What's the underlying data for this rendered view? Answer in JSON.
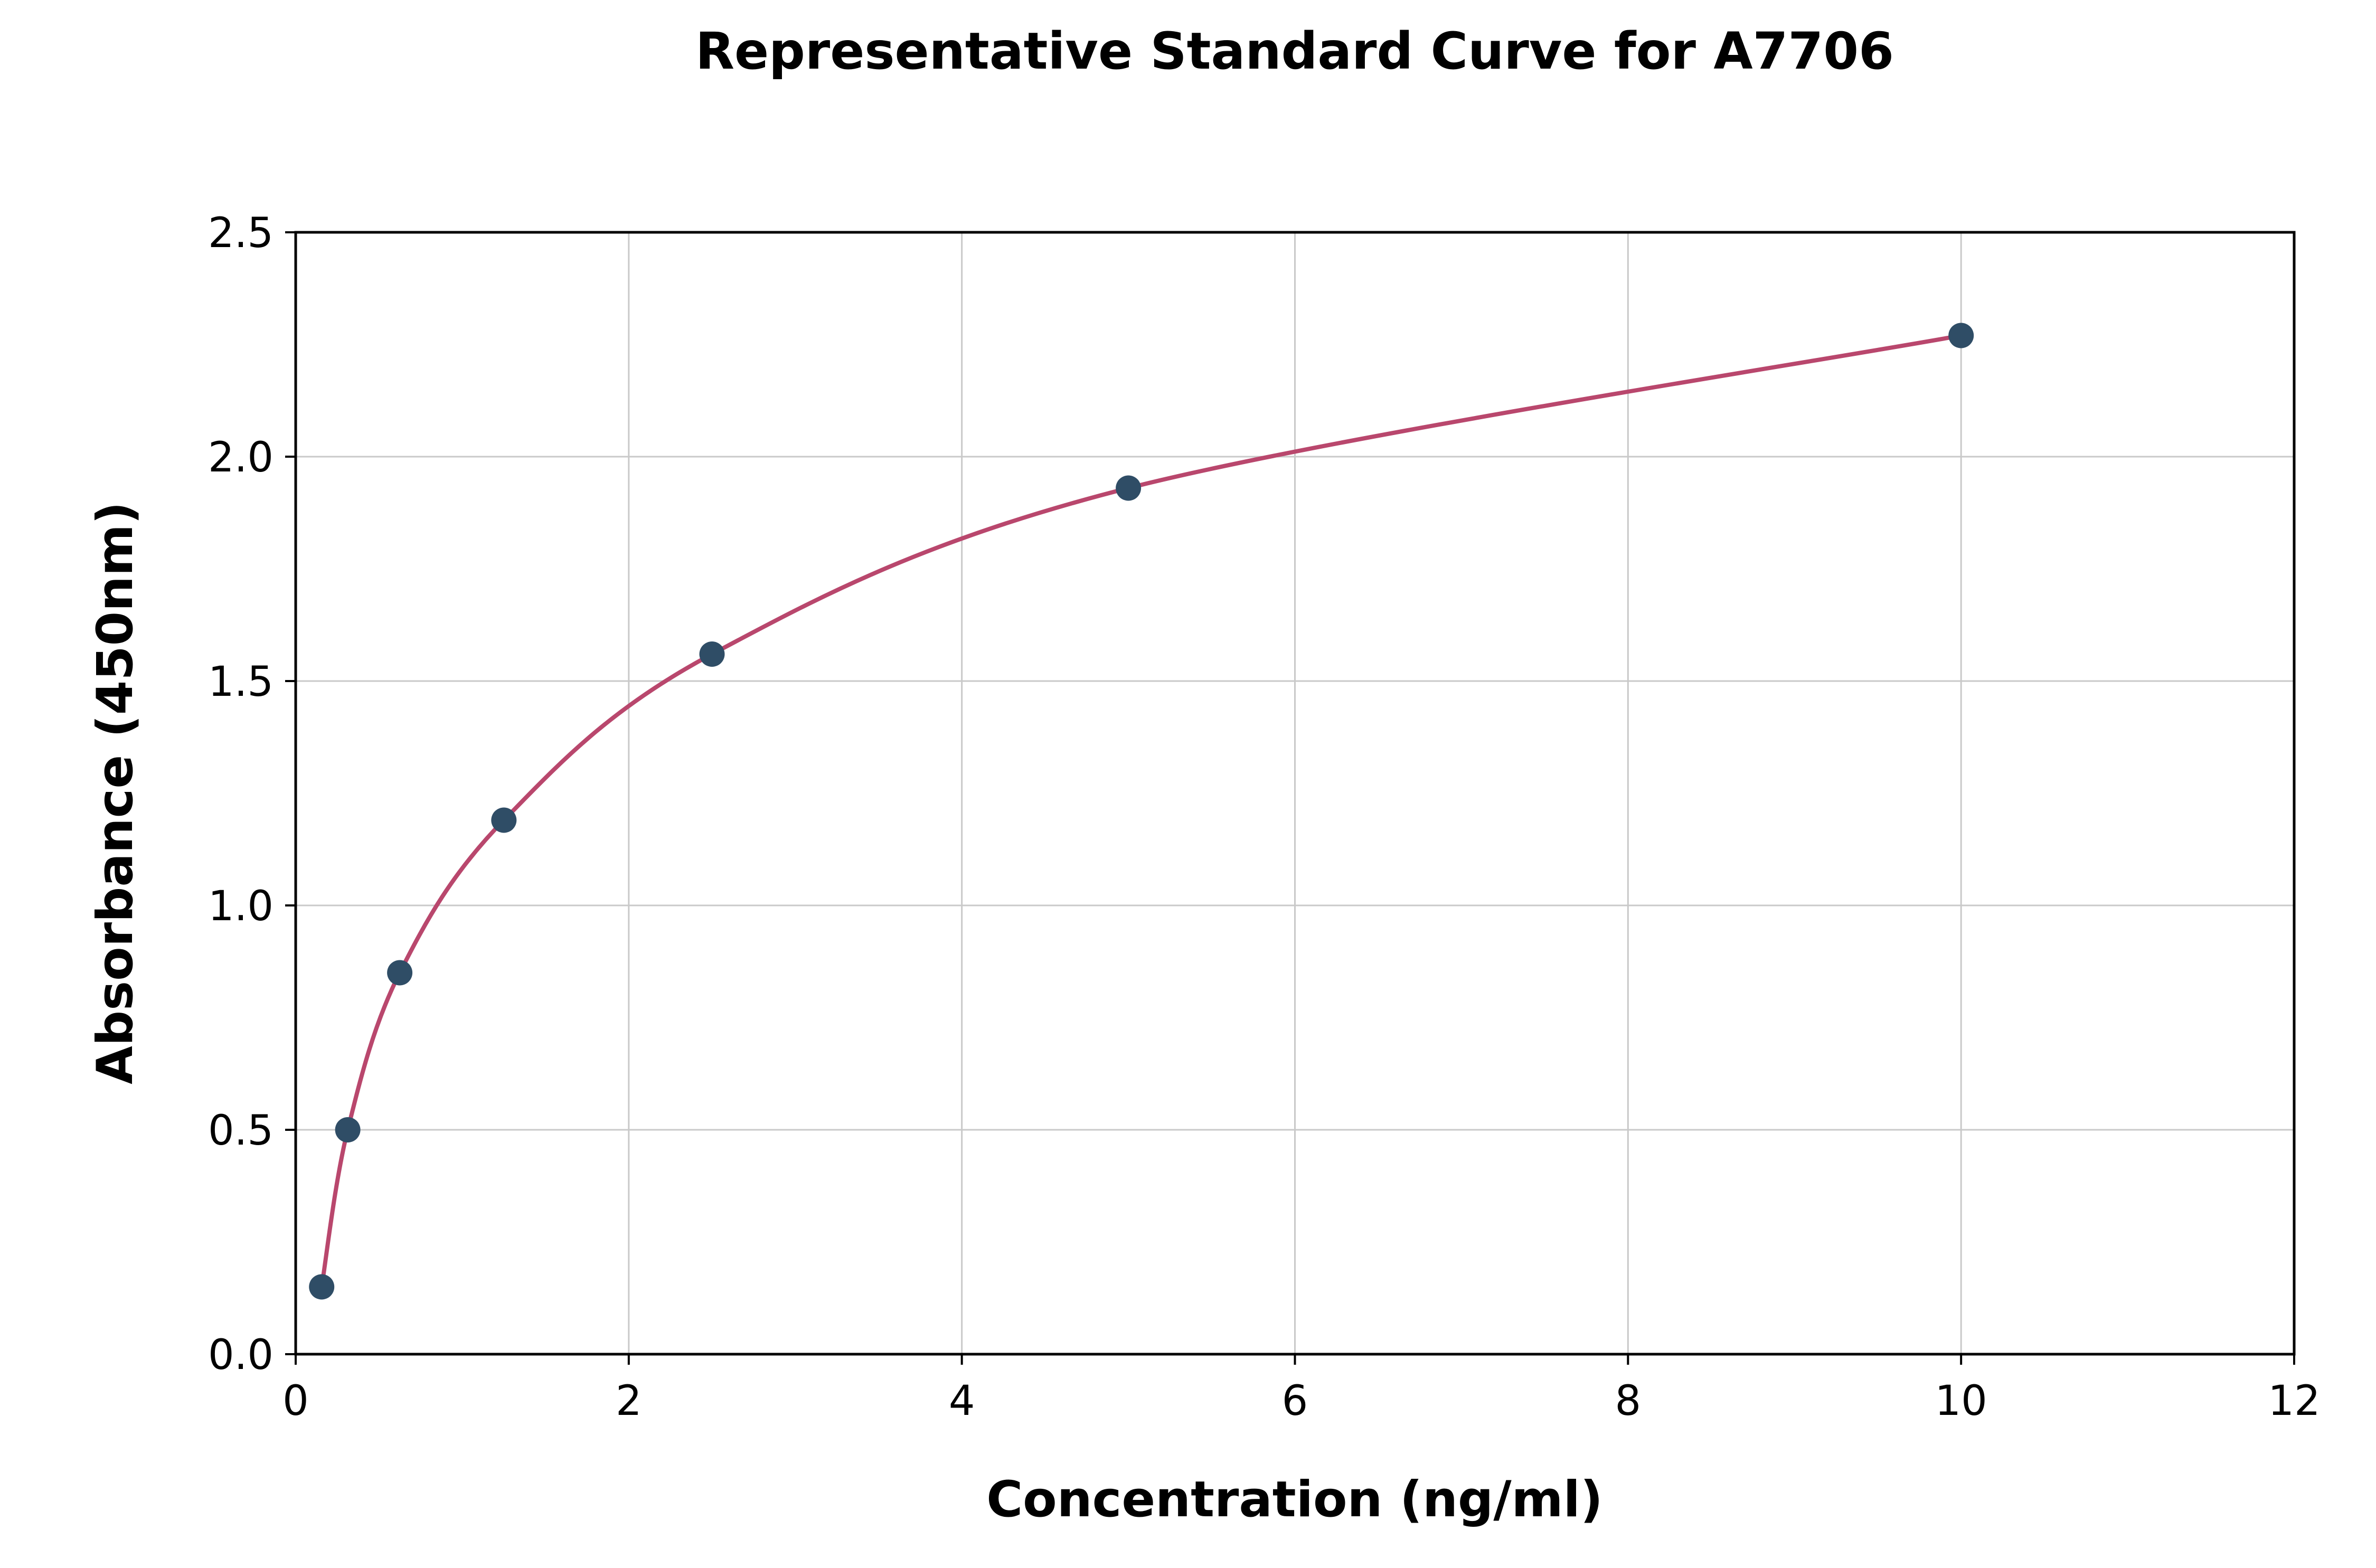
{
  "chart_data": {
    "type": "scatter",
    "title": "Representative Standard Curve for A7706",
    "xlabel": "Concentration (ng/ml)",
    "ylabel": "Absorbance (450nm)",
    "xlim": [
      0,
      12
    ],
    "ylim": [
      0,
      2.5
    ],
    "xticks": [
      0,
      2,
      4,
      6,
      8,
      10,
      12
    ],
    "xtick_labels": [
      "0",
      "2",
      "4",
      "6",
      "8",
      "10",
      "12"
    ],
    "yticks": [
      0,
      0.5,
      1.0,
      1.5,
      2.0,
      2.5
    ],
    "ytick_labels": [
      "0.0",
      "0.5",
      "1.0",
      "1.5",
      "2.0",
      "2.5"
    ],
    "grid": true,
    "legend": "none",
    "points": {
      "x": [
        0.156,
        0.3125,
        0.625,
        1.25,
        2.5,
        5,
        10
      ],
      "y": [
        0.15,
        0.5,
        0.85,
        1.19,
        1.56,
        1.93,
        2.27
      ]
    },
    "curve_color": "#b9476d",
    "point_color": "#2f4d66",
    "grid_color": "#c9c9c9",
    "axis_color": "#000000",
    "background": "#ffffff"
  }
}
